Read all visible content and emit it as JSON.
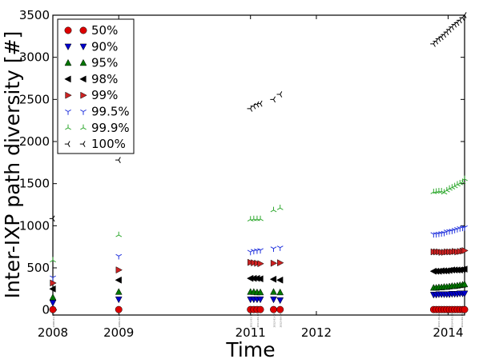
{
  "chart_data": {
    "type": "scatter",
    "xlabel": "Time",
    "ylabel": "Inter-IXP path diversity [#]",
    "x_ticks": [
      "2008",
      "2009",
      "2011",
      "2012",
      "2014"
    ],
    "x_tick_values": [
      2008.0,
      2009.0,
      2011.0,
      2012.0,
      2014.0
    ],
    "xlim": [
      2008.0,
      2014.25
    ],
    "ylim": [
      -60,
      3500
    ],
    "y_ticks": [
      0,
      500,
      1000,
      1500,
      2000,
      2500,
      3000,
      3500
    ],
    "grid": false,
    "legend_position": "top-left",
    "x": [
      2008.0,
      2009.0,
      2011.0,
      2011.05,
      2011.1,
      2011.15,
      2011.35,
      2011.45,
      2013.78,
      2013.82,
      2013.86,
      2013.9,
      2013.94,
      2013.98,
      2014.02,
      2014.06,
      2014.1,
      2014.14,
      2014.18,
      2014.22,
      2014.25
    ],
    "series": [
      {
        "name": "50%",
        "marker": "circle",
        "color": "#dd0000",
        "values": [
          5,
          5,
          5,
          5,
          5,
          5,
          5,
          5,
          5,
          5,
          5,
          5,
          5,
          5,
          5,
          5,
          5,
          5,
          5,
          5,
          5
        ]
      },
      {
        "name": "90%",
        "marker": "triangle-down",
        "color": "#0000cc",
        "values": [
          85,
          125,
          125,
          125,
          125,
          125,
          125,
          115,
          180,
          180,
          185,
          185,
          185,
          185,
          185,
          190,
          190,
          190,
          195,
          195,
          195
        ]
      },
      {
        "name": "95%",
        "marker": "triangle-up",
        "color": "#007700",
        "values": [
          150,
          215,
          215,
          215,
          210,
          210,
          215,
          210,
          265,
          265,
          270,
          270,
          275,
          275,
          280,
          285,
          285,
          290,
          295,
          300,
          305
        ]
      },
      {
        "name": "98%",
        "marker": "triangle-left",
        "color": "#000000",
        "values": [
          250,
          355,
          375,
          375,
          375,
          370,
          365,
          355,
          460,
          460,
          460,
          465,
          465,
          465,
          470,
          475,
          475,
          475,
          475,
          480,
          485
        ]
      },
      {
        "name": "99%",
        "marker": "triangle-right",
        "color": "#cc2222",
        "values": [
          320,
          475,
          565,
          560,
          555,
          550,
          555,
          560,
          690,
          690,
          690,
          685,
          685,
          690,
          690,
          690,
          695,
          690,
          695,
          700,
          705
        ]
      },
      {
        "name": "99.5%",
        "marker": "tri-down",
        "color": "#2233dd",
        "values": [
          385,
          640,
          690,
          700,
          705,
          710,
          730,
          740,
          900,
          900,
          905,
          910,
          915,
          930,
          935,
          940,
          950,
          960,
          970,
          975,
          980
        ]
      },
      {
        "name": "99.9%",
        "marker": "tri-up",
        "color": "#33aa33",
        "values": [
          590,
          890,
          1075,
          1080,
          1080,
          1080,
          1185,
          1210,
          1400,
          1405,
          1410,
          1410,
          1395,
          1420,
          1440,
          1455,
          1470,
          1490,
          1505,
          1520,
          1555
        ]
      },
      {
        "name": "100%",
        "marker": "tri-left",
        "color": "#000000",
        "values": [
          1085,
          1780,
          2390,
          2420,
          2440,
          2450,
          2500,
          2560,
          3160,
          3190,
          3220,
          3240,
          3270,
          3300,
          3330,
          3360,
          3390,
          3410,
          3440,
          3470,
          3500
        ]
      }
    ],
    "date_labels": [
      {
        "x": 2008.0,
        "text": "2008-01-15"
      },
      {
        "x": 2009.0,
        "text": "2009-02-18"
      },
      {
        "x": 2011.0,
        "text": "2011-01-17"
      },
      {
        "x": 2011.1,
        "text": "2011-04-11"
      },
      {
        "x": 2011.35,
        "text": "2012-01-09"
      },
      {
        "x": 2011.45,
        "text": "2012-06-04"
      },
      {
        "x": 2013.85,
        "text": "2013-10-21"
      },
      {
        "x": 2014.05,
        "text": "2014-01-20"
      },
      {
        "x": 2014.2,
        "text": "2014-04-14"
      }
    ]
  }
}
